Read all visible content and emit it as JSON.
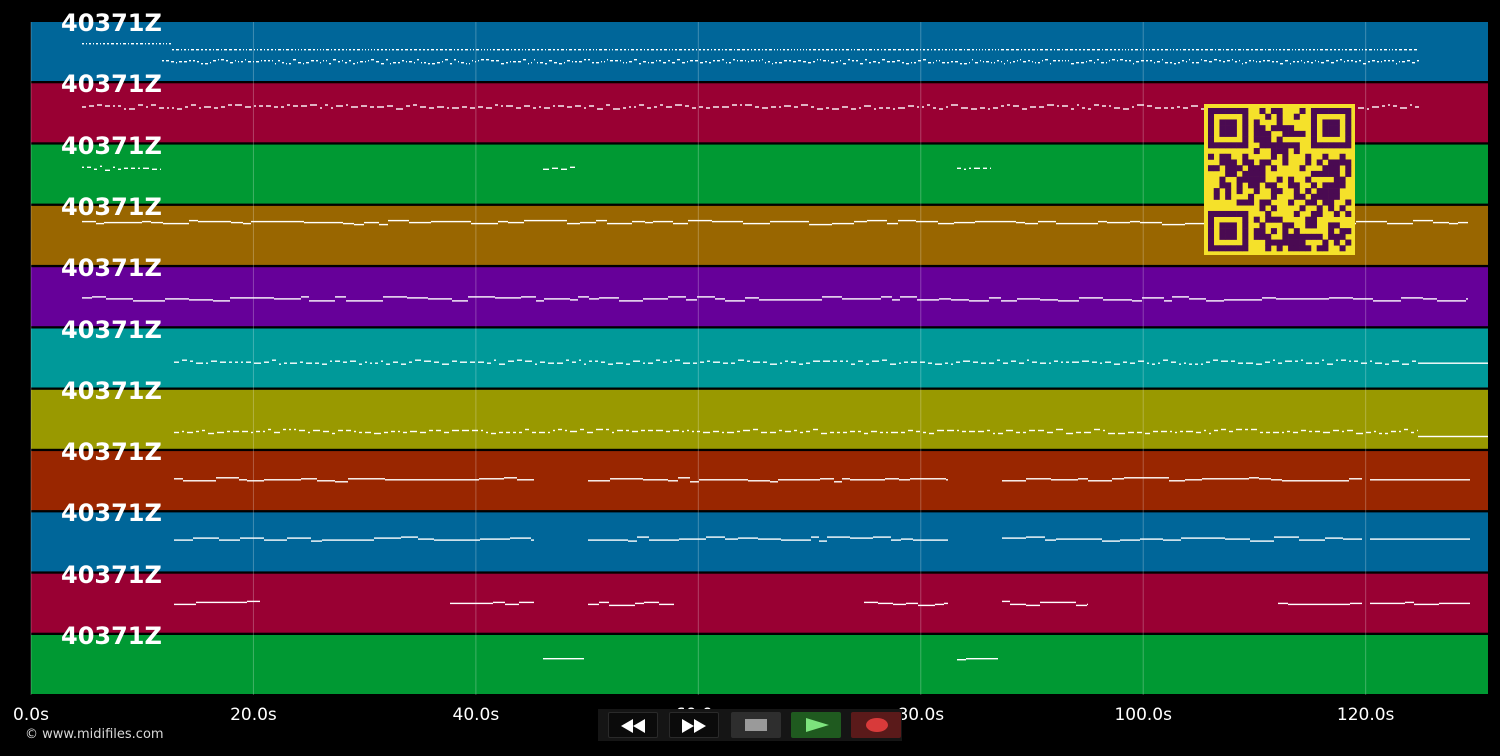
{
  "tracks": [
    {
      "label": "40371Z",
      "color": "#006699"
    },
    {
      "label": "40371Z",
      "color": "#990033"
    },
    {
      "label": "40371Z",
      "color": "#009933"
    },
    {
      "label": "40371Z",
      "color": "#996600"
    },
    {
      "label": "40371Z",
      "color": "#660099"
    },
    {
      "label": "40371Z",
      "color": "#009999"
    },
    {
      "label": "40371Z",
      "color": "#999900"
    },
    {
      "label": "40371Z",
      "color": "#992600"
    },
    {
      "label": "40371Z",
      "color": "#006699"
    },
    {
      "label": "40371Z",
      "color": "#990033"
    },
    {
      "label": "40371Z",
      "color": "#009933"
    }
  ],
  "timeline": {
    "ticks": [
      "0.0s",
      "20.0s",
      "40.0s",
      "60.0s",
      "80.0s",
      "100.0s",
      "120.0s"
    ],
    "tick_values": [
      0,
      20,
      40,
      60,
      80,
      100,
      120
    ],
    "max_seconds": 131
  },
  "transport": {
    "rewind_icon": "rewind-icon",
    "fast_forward_icon": "fast-forward-icon",
    "stop_icon": "stop-icon",
    "play_icon": "play-icon",
    "record_icon": "record-icon",
    "play_color": "#3a9a3a",
    "record_color": "#cc3333"
  },
  "qr_code": {
    "colors": {
      "light": "#f5e12a",
      "dark": "#4a0a52"
    }
  },
  "footer": {
    "copyright": "© www.midifiles.com"
  }
}
